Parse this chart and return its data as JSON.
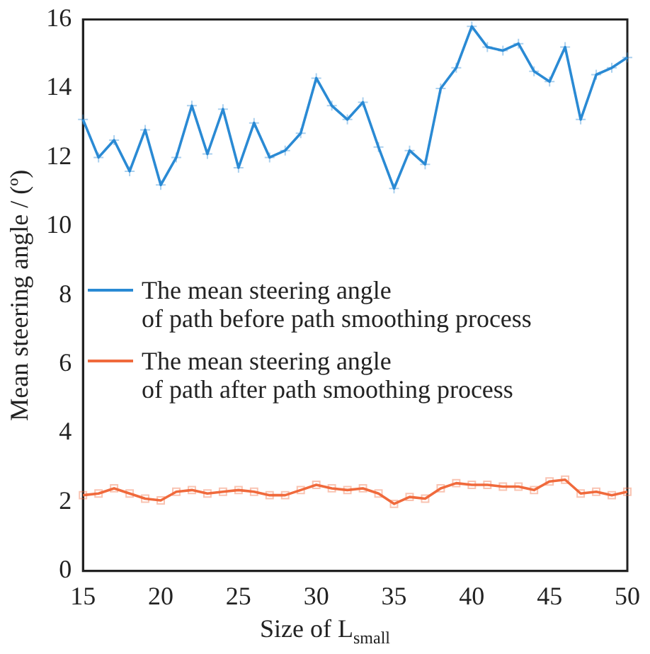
{
  "chart_data": {
    "type": "line",
    "xlabel": "Size of L$_{small}$",
    "ylabel": "Mean steering angle / (º)",
    "x": [
      15,
      16,
      17,
      18,
      19,
      20,
      21,
      22,
      23,
      24,
      25,
      26,
      27,
      28,
      29,
      30,
      31,
      32,
      33,
      34,
      35,
      36,
      37,
      38,
      39,
      40,
      41,
      42,
      43,
      44,
      45,
      46,
      47,
      48,
      49,
      50
    ],
    "series": [
      {
        "name": "The mean steering angle\nof path before path smoothing process",
        "color": "#2a8ad4",
        "marker": "cross",
        "values": [
          13.1,
          12.0,
          12.5,
          11.6,
          12.8,
          11.2,
          12.0,
          13.5,
          12.1,
          13.4,
          11.7,
          13.0,
          12.0,
          12.2,
          12.7,
          14.3,
          13.5,
          13.1,
          13.6,
          12.3,
          11.1,
          12.2,
          11.8,
          14.0,
          14.6,
          15.8,
          15.2,
          15.1,
          15.3,
          14.5,
          14.2,
          15.2,
          13.1,
          14.4,
          14.6,
          14.9
        ]
      },
      {
        "name": "The mean steering angle\nof path after path smoothing process",
        "color": "#f06a3c",
        "marker": "square",
        "values": [
          2.2,
          2.25,
          2.4,
          2.25,
          2.1,
          2.05,
          2.3,
          2.35,
          2.25,
          2.3,
          2.35,
          2.3,
          2.2,
          2.2,
          2.35,
          2.5,
          2.4,
          2.35,
          2.4,
          2.25,
          1.95,
          2.15,
          2.1,
          2.4,
          2.55,
          2.5,
          2.5,
          2.45,
          2.45,
          2.35,
          2.6,
          2.65,
          2.25,
          2.3,
          2.2,
          2.3
        ]
      }
    ],
    "xlim": [
      15,
      50
    ],
    "xticks": [
      15,
      20,
      25,
      30,
      35,
      40,
      45,
      50
    ],
    "ylim": [
      0,
      16
    ],
    "yticks": [
      0,
      2,
      4,
      6,
      8,
      10,
      12,
      14,
      16
    ],
    "legend": "left",
    "grid": false
  }
}
